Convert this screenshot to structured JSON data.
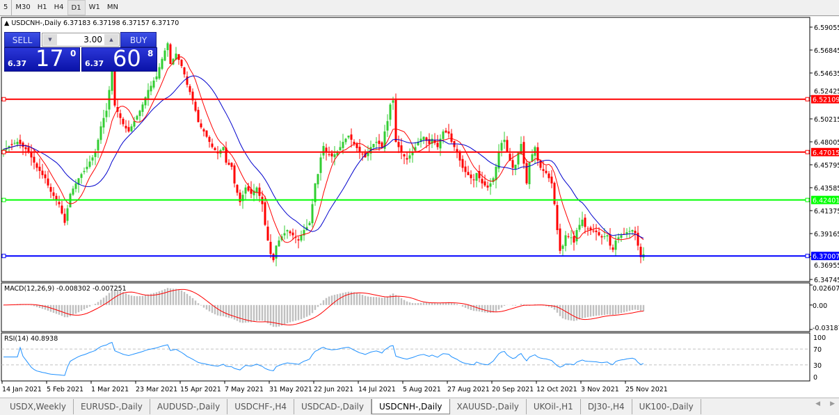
{
  "toolbar": {
    "timeframes": [
      {
        "label": "5"
      },
      {
        "label": "M30"
      },
      {
        "label": "H1"
      },
      {
        "label": "H4"
      },
      {
        "label": "D1",
        "active": true
      },
      {
        "label": "W1"
      },
      {
        "label": "MN"
      }
    ]
  },
  "chart": {
    "title": "USDCNH-,Daily",
    "ohlc": "6.37183 6.37198 6.37157 6.37170",
    "trade": {
      "sell_label": "SELL",
      "buy_label": "BUY",
      "lot": "3.00",
      "sell_big": "6.37",
      "sell_main": "17",
      "sell_sup": "0",
      "buy_big": "6.37",
      "buy_main": "60",
      "buy_sup": "8"
    },
    "colors": {
      "bull": "#32cd32",
      "bear": "#ff0000",
      "ma_fast": "#ff0000",
      "ma_slow": "#0000cd"
    }
  },
  "chart_data": {
    "type": "candlestick",
    "price_ticks": [
      "6.59055",
      "6.56845",
      "6.54635",
      "6.52425",
      "6.50215",
      "6.48005",
      "6.45795",
      "6.43585",
      "6.41375",
      "6.39165",
      "6.36955",
      "6.34745"
    ],
    "ylim": [
      6.34745,
      6.59055
    ],
    "levels": [
      {
        "value": "6.52109",
        "color": "#ff0000"
      },
      {
        "value": "6.47015",
        "color": "#ff0000"
      },
      {
        "value": "6.42401",
        "color": "#00ff00"
      },
      {
        "value": "6.37007",
        "color": "#0000ff"
      }
    ],
    "date_ticks": [
      "14 Jan 2021",
      "5 Feb 2021",
      "1 Mar 2021",
      "23 Mar 2021",
      "15 Apr 2021",
      "7 May 2021",
      "31 May 2021",
      "22 Jun 2021",
      "14 Jul 2021",
      "5 Aug 2021",
      "27 Aug 2021",
      "20 Sep 2021",
      "12 Oct 2021",
      "3 Nov 2021",
      "25 Nov 2021"
    ],
    "close": [
      6.473,
      6.474,
      6.476,
      6.477,
      6.479,
      6.48,
      6.478,
      6.475,
      6.473,
      6.47,
      6.465,
      6.46,
      6.455,
      6.452,
      6.448,
      6.445,
      6.438,
      6.432,
      6.428,
      6.424,
      6.42,
      6.411,
      6.402,
      6.416,
      6.43,
      6.435,
      6.44,
      6.445,
      6.449,
      6.452,
      6.456,
      6.461,
      6.465,
      6.47,
      6.482,
      6.495,
      6.503,
      6.51,
      6.53,
      6.548,
      6.515,
      6.509,
      6.503,
      6.497,
      6.493,
      6.49,
      6.495,
      6.5,
      6.505,
      6.51,
      6.516,
      6.523,
      6.53,
      6.534,
      6.539,
      6.543,
      6.552,
      6.56,
      6.568,
      6.575,
      6.555,
      6.56,
      6.565,
      6.559,
      6.553,
      6.545,
      6.535,
      6.528,
      6.52,
      6.51,
      6.499,
      6.494,
      6.49,
      6.485,
      6.48,
      6.475,
      6.472,
      6.469,
      6.472,
      6.475,
      6.46,
      6.458,
      6.456,
      6.44,
      6.431,
      6.422,
      6.429,
      6.436,
      6.433,
      6.43,
      6.433,
      6.436,
      6.428,
      6.42,
      6.4,
      6.385,
      6.372,
      6.366,
      6.38,
      6.385,
      6.389,
      6.392,
      6.395,
      6.392,
      6.39,
      6.388,
      6.385,
      6.39,
      6.395,
      6.398,
      6.402,
      6.42,
      6.44,
      6.449,
      6.465,
      6.476,
      6.47,
      6.468,
      6.466,
      6.468,
      6.47,
      6.475,
      6.48,
      6.483,
      6.486,
      6.482,
      6.478,
      6.474,
      6.47,
      6.468,
      6.465,
      6.47,
      6.475,
      6.478,
      6.48,
      6.478,
      6.475,
      6.49,
      6.5,
      6.516,
      6.52,
      6.48,
      6.475,
      6.47,
      6.466,
      6.463,
      6.467,
      6.47,
      6.475,
      6.48,
      6.483,
      6.485,
      6.481,
      6.478,
      6.483,
      6.479,
      6.475,
      6.483,
      6.49,
      6.489,
      6.488,
      6.48,
      6.475,
      6.47,
      6.462,
      6.455,
      6.451,
      6.448,
      6.445,
      6.443,
      6.45,
      6.445,
      6.44,
      6.438,
      6.436,
      6.44,
      6.445,
      6.456,
      6.47,
      6.479,
      6.482,
      6.47,
      6.462,
      6.455,
      6.458,
      6.47,
      6.478,
      6.459,
      6.44,
      6.46,
      6.468,
      6.475,
      6.462,
      6.455,
      6.452,
      6.45,
      6.445,
      6.44,
      6.42,
      6.395,
      6.375,
      6.38,
      6.39,
      6.389,
      6.388,
      6.383,
      6.395,
      6.4,
      6.405,
      6.398,
      6.396,
      6.395,
      6.394,
      6.393,
      6.39,
      6.388,
      6.389,
      6.39,
      6.38,
      6.376,
      6.385,
      6.388,
      6.39,
      6.391,
      6.393,
      6.394,
      6.395,
      6.392,
      6.38,
      6.369,
      6.3717
    ],
    "macd": {
      "label": "MACD(12,26,9) -0.008302 -0.007251",
      "ticks": [
        "0.02607",
        "0.00",
        "-0.03187"
      ],
      "ylim": [
        -0.03187,
        0.02607
      ]
    },
    "rsi": {
      "label": "RSI(14) 40.8938",
      "ticks": [
        "100",
        "70",
        "30",
        "0"
      ],
      "ylim": [
        0,
        100
      ],
      "levels": [
        70,
        30
      ]
    }
  },
  "tabs": [
    {
      "label": "USDX,Weekly"
    },
    {
      "label": "EURUSD-,Daily"
    },
    {
      "label": "AUDUSD-,Daily"
    },
    {
      "label": "USDCHF-,H4"
    },
    {
      "label": "USDCAD-,Daily"
    },
    {
      "label": "USDCNH-,Daily",
      "active": true
    },
    {
      "label": "XAUUSD-,Daily"
    },
    {
      "label": "UKOil-,H1"
    },
    {
      "label": "DJ30-,H4"
    },
    {
      "label": "UK100-,Daily"
    }
  ],
  "scroll": {
    "left": "◀",
    "right": "▶"
  }
}
